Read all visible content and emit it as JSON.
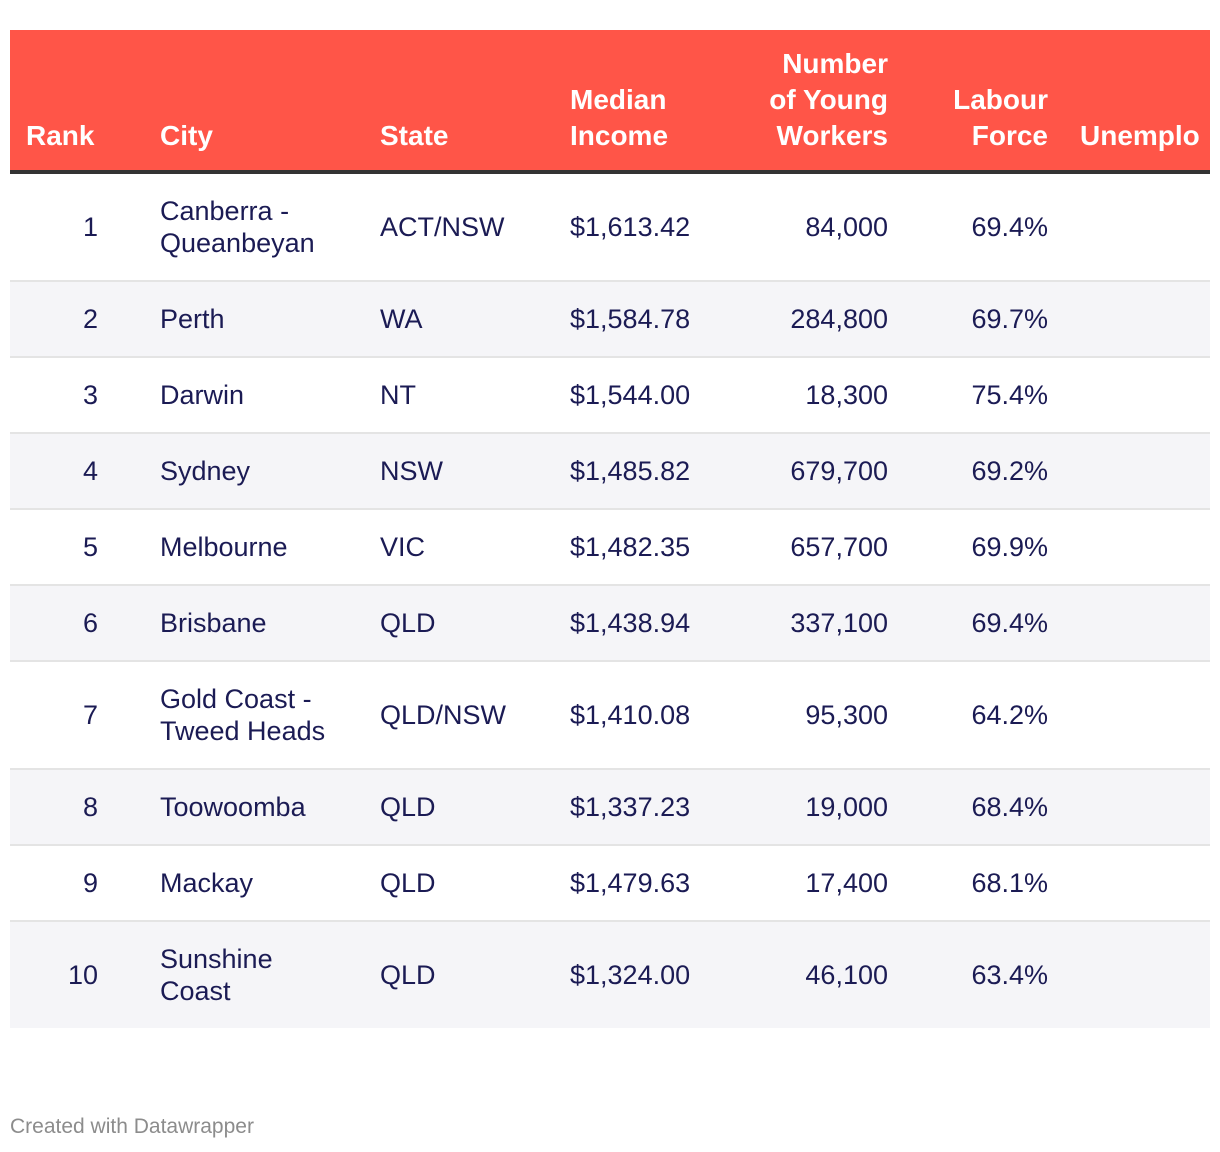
{
  "table": {
    "headers": {
      "rank": "Rank",
      "city": "City",
      "state": "State",
      "income": "Median Income",
      "workers": "Number of Young Workers",
      "labour": "Labour Force",
      "unemp": "Unemplo"
    },
    "rows": [
      {
        "rank": "1",
        "city": "Canberra - Queanbeyan",
        "state": "ACT/NSW",
        "income": "$1,613.42",
        "workers": "84,000",
        "labour": "69.4%"
      },
      {
        "rank": "2",
        "city": "Perth",
        "state": "WA",
        "income": "$1,584.78",
        "workers": "284,800",
        "labour": "69.7%"
      },
      {
        "rank": "3",
        "city": "Darwin",
        "state": "NT",
        "income": "$1,544.00",
        "workers": "18,300",
        "labour": "75.4%"
      },
      {
        "rank": "4",
        "city": "Sydney",
        "state": "NSW",
        "income": "$1,485.82",
        "workers": "679,700",
        "labour": "69.2%"
      },
      {
        "rank": "5",
        "city": "Melbourne",
        "state": "VIC",
        "income": "$1,482.35",
        "workers": "657,700",
        "labour": "69.9%"
      },
      {
        "rank": "6",
        "city": "Brisbane",
        "state": "QLD",
        "income": "$1,438.94",
        "workers": "337,100",
        "labour": "69.4%"
      },
      {
        "rank": "7",
        "city": "Gold Coast - Tweed Heads",
        "state": "QLD/NSW",
        "income": "$1,410.08",
        "workers": "95,300",
        "labour": "64.2%"
      },
      {
        "rank": "8",
        "city": "Toowoomba",
        "state": "QLD",
        "income": "$1,337.23",
        "workers": "19,000",
        "labour": "68.4%"
      },
      {
        "rank": "9",
        "city": "Mackay",
        "state": "QLD",
        "income": "$1,479.63",
        "workers": "17,400",
        "labour": "68.1%"
      },
      {
        "rank": "10",
        "city": "Sunshine Coast",
        "state": "QLD",
        "income": "$1,324.00",
        "workers": "46,100",
        "labour": "63.4%"
      }
    ]
  },
  "footer": {
    "credit": "Created with Datawrapper"
  },
  "colors": {
    "header_bg": "#ff5548",
    "header_text": "#ffffff",
    "body_text": "#1b1b54",
    "stripe_bg": "#f5f5f8"
  }
}
